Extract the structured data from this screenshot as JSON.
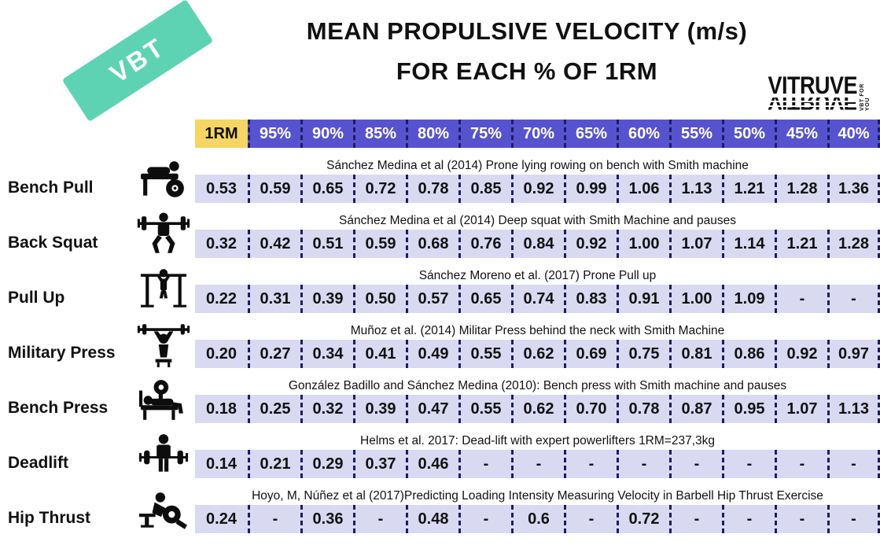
{
  "badge": {
    "label": "VBT"
  },
  "title": {
    "line1": "MEAN PROPULSIVE VELOCITY (m/s)",
    "line2": "FOR EACH % OF 1RM"
  },
  "logo": {
    "name": "VITRUVE",
    "tagline": "VBT FOR YOU"
  },
  "colors": {
    "badge_teal": "#5ed3b4",
    "header_purple": "#5753ce",
    "rm_yellow": "#f5d563",
    "cell_lavender": "#d9d9f2",
    "dash_navy": "#1c1c66"
  },
  "chart_data": {
    "type": "table",
    "title": "MEAN PROPULSIVE VELOCITY (m/s) FOR EACH % OF 1RM",
    "columns": [
      "1RM",
      "95%",
      "90%",
      "85%",
      "80%",
      "75%",
      "70%",
      "65%",
      "60%",
      "55%",
      "50%",
      "45%",
      "40%"
    ],
    "rows": [
      {
        "exercise": "Bench Pull",
        "icon": "bench-pull-icon",
        "citation": "Sánchez Medina et al (2014) Prone lying rowing on bench with Smith machine",
        "values": [
          "0.53",
          "0.59",
          "0.65",
          "0.72",
          "0.78",
          "0.85",
          "0.92",
          "0.99",
          "1.06",
          "1.13",
          "1.21",
          "1.28",
          "1.36"
        ]
      },
      {
        "exercise": "Back Squat",
        "icon": "back-squat-icon",
        "citation": "Sánchez Medina et al (2014) Deep squat with Smith Machine and pauses",
        "values": [
          "0.32",
          "0.42",
          "0.51",
          "0.59",
          "0.68",
          "0.76",
          "0.84",
          "0.92",
          "1.00",
          "1.07",
          "1.14",
          "1.21",
          "1.28"
        ]
      },
      {
        "exercise": "Pull Up",
        "icon": "pull-up-icon",
        "citation": "Sánchez Moreno et al. (2017) Prone Pull up",
        "values": [
          "0.22",
          "0.31",
          "0.39",
          "0.50",
          "0.57",
          "0.65",
          "0.74",
          "0.83",
          "0.91",
          "1.00",
          "1.09",
          "-",
          "-"
        ]
      },
      {
        "exercise": "Military Press",
        "icon": "military-press-icon",
        "citation": "Muñoz et al. (2014) Militar Press behind the neck with Smith Machine",
        "values": [
          "0.20",
          "0.27",
          "0.34",
          "0.41",
          "0.49",
          "0.55",
          "0.62",
          "0.69",
          "0.75",
          "0.81",
          "0.86",
          "0.92",
          "0.97"
        ]
      },
      {
        "exercise": "Bench Press",
        "icon": "bench-press-icon",
        "citation": "González Badillo and Sánchez Medina (2010): Bench press with Smith machine and pauses",
        "values": [
          "0.18",
          "0.25",
          "0.32",
          "0.39",
          "0.47",
          "0.55",
          "0.62",
          "0.70",
          "0.78",
          "0.87",
          "0.95",
          "1.07",
          "1.13"
        ]
      },
      {
        "exercise": "Deadlift",
        "icon": "deadlift-icon",
        "citation": "Helms et al. 2017: Dead-lift with expert powerlifters 1RM=237,3kg",
        "values": [
          "0.14",
          "0.21",
          "0.29",
          "0.37",
          "0.46",
          "-",
          "-",
          "-",
          "-",
          "-",
          "-",
          "-",
          "-"
        ]
      },
      {
        "exercise": "Hip Thrust",
        "icon": "hip-thrust-icon",
        "citation": "Hoyo, M, Núñez et al (2017)Predicting Loading Intensity Measuring Velocity in Barbell Hip Thrust Exercise",
        "values": [
          "0.24",
          "-",
          "0.36",
          "-",
          "0.48",
          "-",
          "0.6",
          "-",
          "0.72",
          "-",
          "-",
          "-",
          "-"
        ]
      }
    ]
  }
}
